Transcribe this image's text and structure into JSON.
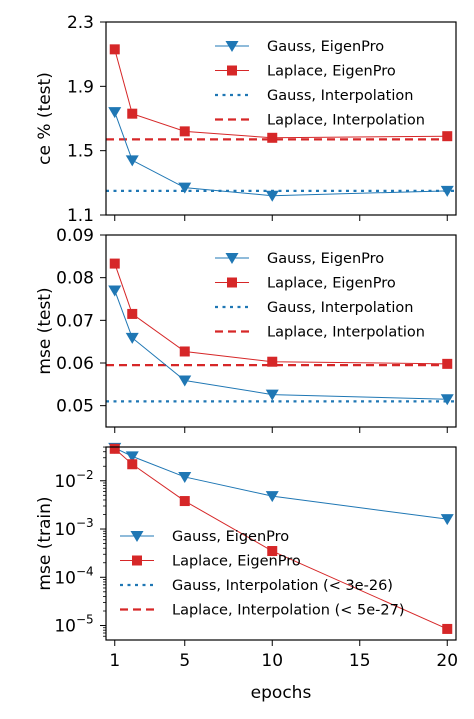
{
  "chart_data": [
    {
      "type": "line",
      "xlabel": "",
      "ylabel": "ce % (test)",
      "ylim": [
        1.1,
        2.3
      ],
      "yticks": [
        "1.1",
        "1.5",
        "1.9",
        "2.3"
      ],
      "ytick_values": [
        1.1,
        1.5,
        1.9,
        2.3
      ],
      "xlim": [
        0.5,
        20.5
      ],
      "legend_position": "top-right",
      "series": [
        {
          "name": "Gauss, EigenPro",
          "color": "#1f77b4",
          "marker": "triangle-down",
          "x": [
            1,
            2,
            5,
            10,
            20
          ],
          "y": [
            1.74,
            1.44,
            1.27,
            1.22,
            1.25
          ]
        },
        {
          "name": "Laplace, EigenPro",
          "color": "#d62728",
          "marker": "square",
          "x": [
            1,
            2,
            5,
            10,
            20
          ],
          "y": [
            2.13,
            1.73,
            1.62,
            1.58,
            1.59
          ]
        }
      ],
      "hlines": [
        {
          "name": "Gauss, Interpolation",
          "color": "#1f77b4",
          "style": "dotted",
          "y": 1.25
        },
        {
          "name": "Laplace, Interpolation",
          "color": "#d62728",
          "style": "dashed",
          "y": 1.57
        }
      ]
    },
    {
      "type": "line",
      "xlabel": "",
      "ylabel": "mse (test)",
      "ylim": [
        0.045,
        0.09
      ],
      "yticks": [
        "0.05",
        "0.06",
        "0.07",
        "0.08",
        "0.09"
      ],
      "ytick_values": [
        0.05,
        0.06,
        0.07,
        0.08,
        0.09
      ],
      "xlim": [
        0.5,
        20.5
      ],
      "legend_position": "top-right",
      "series": [
        {
          "name": "Gauss, EigenPro",
          "color": "#1f77b4",
          "marker": "triangle-down",
          "x": [
            1,
            2,
            5,
            10,
            20
          ],
          "y": [
            0.077,
            0.0659,
            0.0559,
            0.0526,
            0.0515
          ]
        },
        {
          "name": "Laplace, EigenPro",
          "color": "#d62728",
          "marker": "square",
          "x": [
            1,
            2,
            5,
            10,
            20
          ],
          "y": [
            0.0833,
            0.0715,
            0.0627,
            0.0603,
            0.0598
          ]
        }
      ],
      "hlines": [
        {
          "name": "Gauss, Interpolation",
          "color": "#1f77b4",
          "style": "dotted",
          "y": 0.051
        },
        {
          "name": "Laplace, Interpolation",
          "color": "#d62728",
          "style": "dashed",
          "y": 0.0595
        }
      ]
    },
    {
      "type": "line",
      "xlabel": "epochs",
      "ylabel": "mse (train)",
      "yscale": "log",
      "ylim_log10": [
        -5.3,
        -1.3
      ],
      "yticks": [
        "10",
        "10",
        "10",
        "10"
      ],
      "ytick_exponents": [
        "−2",
        "−3",
        "−4",
        "−5"
      ],
      "ytick_values_log10": [
        -2,
        -3,
        -4,
        -5
      ],
      "xlim": [
        0.5,
        20.5
      ],
      "xticks": [
        "1",
        "5",
        "10",
        "15",
        "20"
      ],
      "xtick_values": [
        1,
        5,
        10,
        15,
        20
      ],
      "legend_position": "bottom-left",
      "series": [
        {
          "name": "Gauss, EigenPro",
          "color": "#1f77b4",
          "marker": "triangle-down",
          "x": [
            1,
            2,
            5,
            10,
            20
          ],
          "y": [
            0.048,
            0.032,
            0.012,
            0.0048,
            0.0016
          ]
        },
        {
          "name": "Laplace, EigenPro",
          "color": "#d62728",
          "marker": "square",
          "x": [
            1,
            2,
            5,
            10,
            20
          ],
          "y": [
            0.046,
            0.022,
            0.0038,
            0.00035,
            8.5e-06
          ]
        }
      ],
      "legend_extra": [
        {
          "name": "Gauss, Interpolation (< 3e-26)",
          "color": "#1f77b4",
          "style": "dotted"
        },
        {
          "name": "Laplace, Interpolation (< 5e-27)",
          "color": "#d62728",
          "style": "dashed"
        }
      ]
    }
  ]
}
